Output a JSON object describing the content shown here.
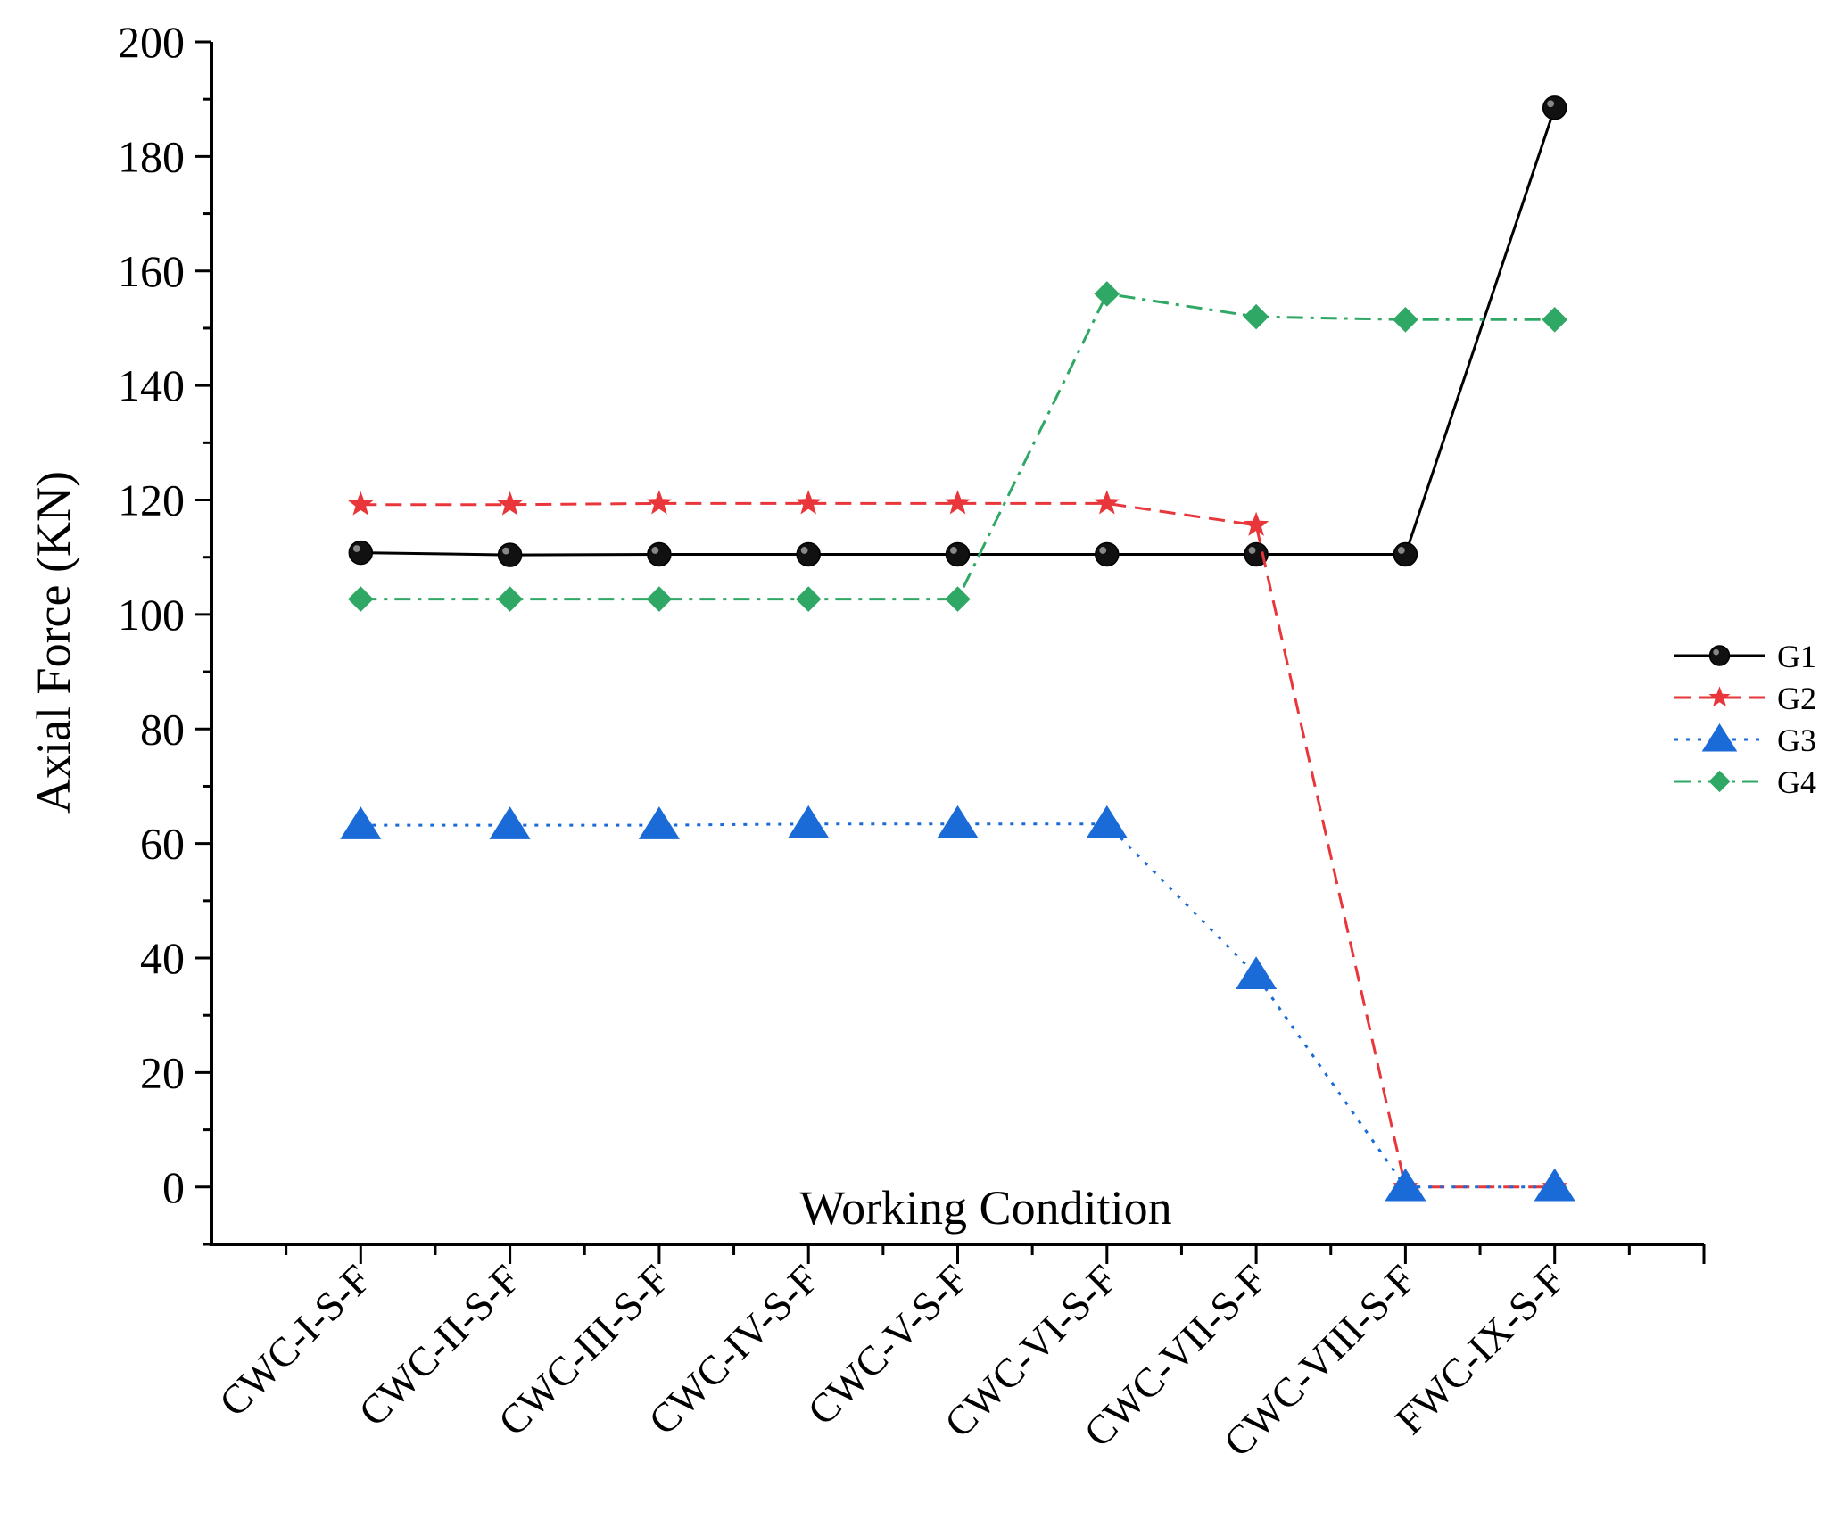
{
  "chart_data": {
    "type": "line",
    "title": "",
    "xlabel": "Working Condition",
    "ylabel": "Axial Force (KN)",
    "ylim": [
      -10,
      200
    ],
    "yticks": [
      0,
      20,
      40,
      60,
      80,
      100,
      120,
      140,
      160,
      180,
      200
    ],
    "grid": false,
    "legend_position": "right",
    "categories": [
      "CWC-I-S-F",
      "CWC-II-S-F",
      "CWC-III-S-F",
      "CWC-IV-S-F",
      "CWC-V-S-F",
      "CWC-VI-S-F",
      "CWC-VII-S-F",
      "CWC-VIII-S-F",
      "FWC-IX-S-F"
    ],
    "series": [
      {
        "name": "G1",
        "color": "#000000",
        "marker": "circle",
        "dash": "solid",
        "values": [
          110.8,
          110.4,
          110.5,
          110.5,
          110.5,
          110.5,
          110.5,
          110.5,
          188.5
        ]
      },
      {
        "name": "G2",
        "color": "#e8363b",
        "marker": "star",
        "dash": "dashed",
        "values": [
          119.2,
          119.2,
          119.4,
          119.4,
          119.4,
          119.4,
          115.6,
          0,
          0
        ]
      },
      {
        "name": "G3",
        "color": "#1a6ad8",
        "marker": "triangle",
        "dash": "dotted",
        "values": [
          63.2,
          63.2,
          63.2,
          63.4,
          63.4,
          63.4,
          37.0,
          0,
          0
        ]
      },
      {
        "name": "G4",
        "color": "#2fa866",
        "marker": "diamond",
        "dash": "dashdot",
        "values": [
          102.7,
          102.7,
          102.7,
          102.7,
          102.7,
          156.0,
          152.0,
          151.5,
          151.5
        ]
      }
    ]
  }
}
